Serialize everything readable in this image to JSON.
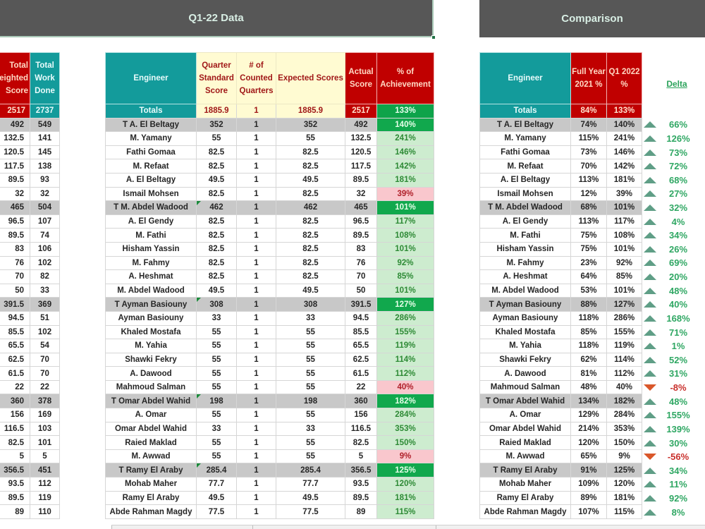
{
  "banners": {
    "left_title": "Q1-22 Data",
    "right_title": "Comparison"
  },
  "colors": {
    "banner_bg": "#575757",
    "teal": "#139b9b",
    "red": "#c00000",
    "yellow": "#fffbd2",
    "green_strong": "#11a84d",
    "green_light": "#cdeccf",
    "pink": "#f9c7cd",
    "delta_up": "#5f9e86",
    "delta_down": "#d9572a"
  },
  "left_table": {
    "headers": [
      "Total Weighted Score",
      "Total Work Done"
    ],
    "header_visible": [
      "Total\neighted\nScore",
      "Total Work Done"
    ],
    "totals": [
      "2517",
      "2737"
    ],
    "rows": [
      [
        "492",
        "549"
      ],
      [
        "132.5",
        "141"
      ],
      [
        "120.5",
        "145"
      ],
      [
        "117.5",
        "138"
      ],
      [
        "89.5",
        "93"
      ],
      [
        "32",
        "32"
      ],
      [
        "465",
        "504"
      ],
      [
        "96.5",
        "107"
      ],
      [
        "89.5",
        "74"
      ],
      [
        "83",
        "106"
      ],
      [
        "76",
        "102"
      ],
      [
        "70",
        "82"
      ],
      [
        "50",
        "33"
      ],
      [
        "391.5",
        "369"
      ],
      [
        "94.5",
        "51"
      ],
      [
        "85.5",
        "102"
      ],
      [
        "65.5",
        "54"
      ],
      [
        "62.5",
        "70"
      ],
      [
        "61.5",
        "70"
      ],
      [
        "22",
        "22"
      ],
      [
        "360",
        "378"
      ],
      [
        "156",
        "169"
      ],
      [
        "116.5",
        "103"
      ],
      [
        "82.5",
        "101"
      ],
      [
        "5",
        "5"
      ],
      [
        "356.5",
        "451"
      ],
      [
        "93.5",
        "112"
      ],
      [
        "89.5",
        "119"
      ],
      [
        "89",
        "110"
      ]
    ]
  },
  "main_table": {
    "headers": {
      "engineer": "Engineer",
      "qss": "Quarter Standard Score",
      "counted": "# of Counted Quarters",
      "expected": "Expected Scores",
      "actual": "Actual Score",
      "achievement": "% of Achievement"
    },
    "totals": {
      "label": "Totals",
      "qss": "1885.9",
      "counted": "1",
      "expected": "1885.9",
      "actual": "2517",
      "achievement": "133%"
    },
    "rows": [
      {
        "team": true,
        "name": "T A. El Beltagy",
        "qss": "352",
        "counted": "1",
        "expected": "352",
        "actual": "492",
        "ach": "140%"
      },
      {
        "team": false,
        "name": "M. Yamany",
        "qss": "55",
        "counted": "1",
        "expected": "55",
        "actual": "132.5",
        "ach": "241%"
      },
      {
        "team": false,
        "name": "Fathi Gomaa",
        "qss": "82.5",
        "counted": "1",
        "expected": "82.5",
        "actual": "120.5",
        "ach": "146%"
      },
      {
        "team": false,
        "name": "M. Refaat",
        "qss": "82.5",
        "counted": "1",
        "expected": "82.5",
        "actual": "117.5",
        "ach": "142%"
      },
      {
        "team": false,
        "name": "A. El Beltagy",
        "qss": "49.5",
        "counted": "1",
        "expected": "49.5",
        "actual": "89.5",
        "ach": "181%"
      },
      {
        "team": false,
        "name": "Ismail Mohsen",
        "qss": "82.5",
        "counted": "1",
        "expected": "82.5",
        "actual": "32",
        "ach": "39%",
        "low": true
      },
      {
        "team": true,
        "name": "T M. Abdel Wadood",
        "qss": "462",
        "counted": "1",
        "expected": "462",
        "actual": "465",
        "ach": "101%",
        "note": true
      },
      {
        "team": false,
        "name": "A. El Gendy",
        "qss": "82.5",
        "counted": "1",
        "expected": "82.5",
        "actual": "96.5",
        "ach": "117%"
      },
      {
        "team": false,
        "name": "M. Fathi",
        "qss": "82.5",
        "counted": "1",
        "expected": "82.5",
        "actual": "89.5",
        "ach": "108%"
      },
      {
        "team": false,
        "name": "Hisham Yassin",
        "qss": "82.5",
        "counted": "1",
        "expected": "82.5",
        "actual": "83",
        "ach": "101%"
      },
      {
        "team": false,
        "name": "M. Fahmy",
        "qss": "82.5",
        "counted": "1",
        "expected": "82.5",
        "actual": "76",
        "ach": "92%"
      },
      {
        "team": false,
        "name": "A. Heshmat",
        "qss": "82.5",
        "counted": "1",
        "expected": "82.5",
        "actual": "70",
        "ach": "85%"
      },
      {
        "team": false,
        "name": "M. Abdel Wadood",
        "qss": "49.5",
        "counted": "1",
        "expected": "49.5",
        "actual": "50",
        "ach": "101%"
      },
      {
        "team": true,
        "name": "T Ayman Basiouny",
        "qss": "308",
        "counted": "1",
        "expected": "308",
        "actual": "391.5",
        "ach": "127%",
        "note": true
      },
      {
        "team": false,
        "name": "Ayman Basiouny",
        "qss": "33",
        "counted": "1",
        "expected": "33",
        "actual": "94.5",
        "ach": "286%"
      },
      {
        "team": false,
        "name": "Khaled Mostafa",
        "qss": "55",
        "counted": "1",
        "expected": "55",
        "actual": "85.5",
        "ach": "155%"
      },
      {
        "team": false,
        "name": "M. Yahia",
        "qss": "55",
        "counted": "1",
        "expected": "55",
        "actual": "65.5",
        "ach": "119%"
      },
      {
        "team": false,
        "name": "Shawki Fekry",
        "qss": "55",
        "counted": "1",
        "expected": "55",
        "actual": "62.5",
        "ach": "114%"
      },
      {
        "team": false,
        "name": "A. Dawood",
        "qss": "55",
        "counted": "1",
        "expected": "55",
        "actual": "61.5",
        "ach": "112%"
      },
      {
        "team": false,
        "name": "Mahmoud Salman",
        "qss": "55",
        "counted": "1",
        "expected": "55",
        "actual": "22",
        "ach": "40%",
        "low": true
      },
      {
        "team": true,
        "name": "T Omar Abdel Wahid",
        "qss": "198",
        "counted": "1",
        "expected": "198",
        "actual": "360",
        "ach": "182%",
        "note": true
      },
      {
        "team": false,
        "name": "A. Omar",
        "qss": "55",
        "counted": "1",
        "expected": "55",
        "actual": "156",
        "ach": "284%"
      },
      {
        "team": false,
        "name": "Omar Abdel Wahid",
        "qss": "33",
        "counted": "1",
        "expected": "33",
        "actual": "116.5",
        "ach": "353%"
      },
      {
        "team": false,
        "name": "Raied Maklad",
        "qss": "55",
        "counted": "1",
        "expected": "55",
        "actual": "82.5",
        "ach": "150%"
      },
      {
        "team": false,
        "name": "M. Awwad",
        "qss": "55",
        "counted": "1",
        "expected": "55",
        "actual": "5",
        "ach": "9%",
        "low": true
      },
      {
        "team": true,
        "name": "T Ramy El Araby",
        "qss": "285.4",
        "counted": "1",
        "expected": "285.4",
        "actual": "356.5",
        "ach": "125%",
        "note": true
      },
      {
        "team": false,
        "name": "Mohab Maher",
        "qss": "77.7",
        "counted": "1",
        "expected": "77.7",
        "actual": "93.5",
        "ach": "120%"
      },
      {
        "team": false,
        "name": "Ramy El Araby",
        "qss": "49.5",
        "counted": "1",
        "expected": "49.5",
        "actual": "89.5",
        "ach": "181%"
      },
      {
        "team": false,
        "name": "Abde Rahman Magdy",
        "qss": "77.5",
        "counted": "1",
        "expected": "77.5",
        "actual": "89",
        "ach": "115%"
      }
    ]
  },
  "comparison_table": {
    "headers": {
      "engineer": "Engineer",
      "fy2021": "Full Year 2021 %",
      "q1_2022": "Q1 2022 %",
      "delta": "Delta"
    },
    "totals": {
      "label": "Totals",
      "fy2021": "84%",
      "q1_2022": "133%"
    },
    "rows": [
      {
        "team": true,
        "name": "T A. El Beltagy",
        "fy": "74%",
        "q1": "140%",
        "dir": "up",
        "delta": "66%"
      },
      {
        "team": false,
        "name": "M. Yamany",
        "fy": "115%",
        "q1": "241%",
        "dir": "up",
        "delta": "126%"
      },
      {
        "team": false,
        "name": "Fathi Gomaa",
        "fy": "73%",
        "q1": "146%",
        "dir": "up",
        "delta": "73%"
      },
      {
        "team": false,
        "name": "M. Refaat",
        "fy": "70%",
        "q1": "142%",
        "dir": "up",
        "delta": "72%"
      },
      {
        "team": false,
        "name": "A. El Beltagy",
        "fy": "113%",
        "q1": "181%",
        "dir": "up",
        "delta": "68%"
      },
      {
        "team": false,
        "name": "Ismail Mohsen",
        "fy": "12%",
        "q1": "39%",
        "dir": "up",
        "delta": "27%"
      },
      {
        "team": true,
        "name": "T M. Abdel Wadood",
        "fy": "68%",
        "q1": "101%",
        "dir": "up",
        "delta": "32%"
      },
      {
        "team": false,
        "name": "A. El Gendy",
        "fy": "113%",
        "q1": "117%",
        "dir": "up",
        "delta": "4%"
      },
      {
        "team": false,
        "name": "M. Fathi",
        "fy": "75%",
        "q1": "108%",
        "dir": "up",
        "delta": "34%"
      },
      {
        "team": false,
        "name": "Hisham Yassin",
        "fy": "75%",
        "q1": "101%",
        "dir": "up",
        "delta": "26%"
      },
      {
        "team": false,
        "name": "M. Fahmy",
        "fy": "23%",
        "q1": "92%",
        "dir": "up",
        "delta": "69%"
      },
      {
        "team": false,
        "name": "A. Heshmat",
        "fy": "64%",
        "q1": "85%",
        "dir": "up",
        "delta": "20%"
      },
      {
        "team": false,
        "name": "M. Abdel Wadood",
        "fy": "53%",
        "q1": "101%",
        "dir": "up",
        "delta": "48%"
      },
      {
        "team": true,
        "name": "T Ayman Basiouny",
        "fy": "88%",
        "q1": "127%",
        "dir": "up",
        "delta": "40%"
      },
      {
        "team": false,
        "name": "Ayman Basiouny",
        "fy": "118%",
        "q1": "286%",
        "dir": "up",
        "delta": "168%"
      },
      {
        "team": false,
        "name": "Khaled Mostafa",
        "fy": "85%",
        "q1": "155%",
        "dir": "up",
        "delta": "71%"
      },
      {
        "team": false,
        "name": "M. Yahia",
        "fy": "118%",
        "q1": "119%",
        "dir": "up",
        "delta": "1%"
      },
      {
        "team": false,
        "name": "Shawki Fekry",
        "fy": "62%",
        "q1": "114%",
        "dir": "up",
        "delta": "52%"
      },
      {
        "team": false,
        "name": "A. Dawood",
        "fy": "81%",
        "q1": "112%",
        "dir": "up",
        "delta": "31%"
      },
      {
        "team": false,
        "name": "Mahmoud Salman",
        "fy": "48%",
        "q1": "40%",
        "dir": "down",
        "delta": "-8%"
      },
      {
        "team": true,
        "name": "T Omar Abdel Wahid",
        "fy": "134%",
        "q1": "182%",
        "dir": "up",
        "delta": "48%"
      },
      {
        "team": false,
        "name": "A. Omar",
        "fy": "129%",
        "q1": "284%",
        "dir": "up",
        "delta": "155%"
      },
      {
        "team": false,
        "name": "Omar Abdel Wahid",
        "fy": "214%",
        "q1": "353%",
        "dir": "up",
        "delta": "139%"
      },
      {
        "team": false,
        "name": "Raied Maklad",
        "fy": "120%",
        "q1": "150%",
        "dir": "up",
        "delta": "30%"
      },
      {
        "team": false,
        "name": "M. Awwad",
        "fy": "65%",
        "q1": "9%",
        "dir": "down",
        "delta": "-56%"
      },
      {
        "team": true,
        "name": "T Ramy El Araby",
        "fy": "91%",
        "q1": "125%",
        "dir": "up",
        "delta": "34%"
      },
      {
        "team": false,
        "name": "Mohab Maher",
        "fy": "109%",
        "q1": "120%",
        "dir": "up",
        "delta": "11%"
      },
      {
        "team": false,
        "name": "Ramy El Araby",
        "fy": "89%",
        "q1": "181%",
        "dir": "up",
        "delta": "92%"
      },
      {
        "team": false,
        "name": "Abde Rahman Magdy",
        "fy": "107%",
        "q1": "115%",
        "dir": "up",
        "delta": "8%"
      }
    ]
  }
}
